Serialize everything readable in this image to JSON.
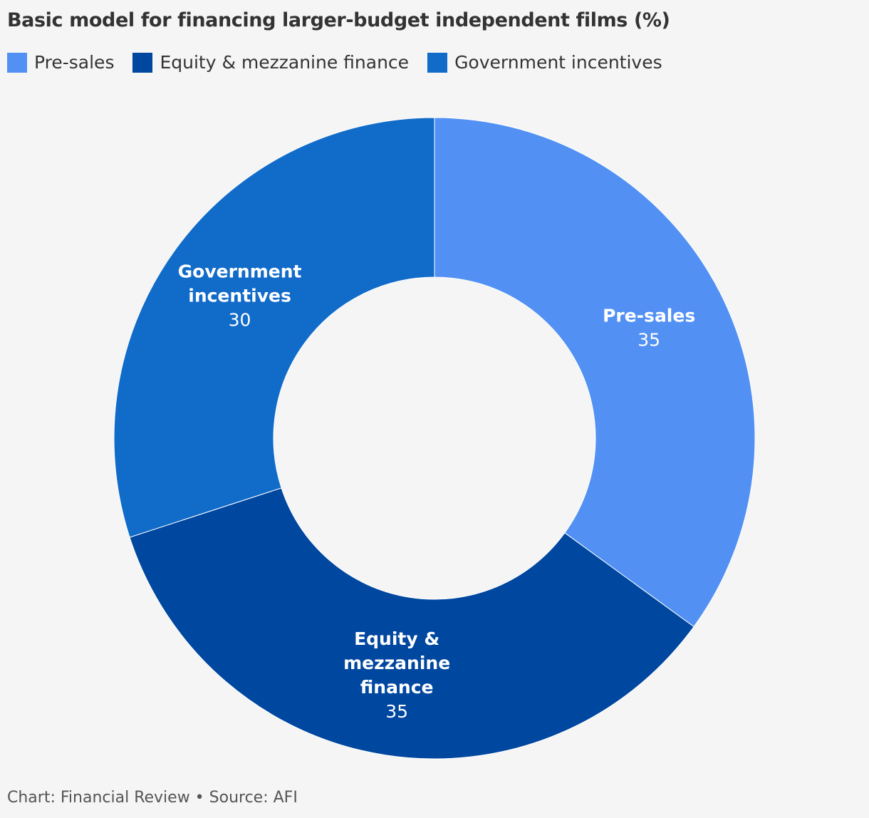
{
  "title": "Basic model for financing larger-budget independent films (%)",
  "legend": [
    {
      "label": "Pre-sales",
      "color": "#5291f3"
    },
    {
      "label": "Equity & mezzanine finance",
      "color": "#0047a0"
    },
    {
      "label": "Government incentives",
      "color": "#116bc9"
    }
  ],
  "chart_data": {
    "type": "pie",
    "variant": "donut",
    "slices": [
      {
        "name": "Pre-sales",
        "label_lines": [
          "Pre-sales"
        ],
        "value": 35,
        "color": "#5291f3"
      },
      {
        "name": "Equity & mezzanine finance",
        "label_lines": [
          "Equity &",
          "mezzanine",
          "finance"
        ],
        "value": 35,
        "color": "#0047a0"
      },
      {
        "name": "Government incentives",
        "label_lines": [
          "Government",
          "incentives"
        ],
        "value": 30,
        "color": "#116bc9"
      }
    ],
    "legend_position": "top-left"
  },
  "footer": "Chart: Financial Review • Source: AFI"
}
